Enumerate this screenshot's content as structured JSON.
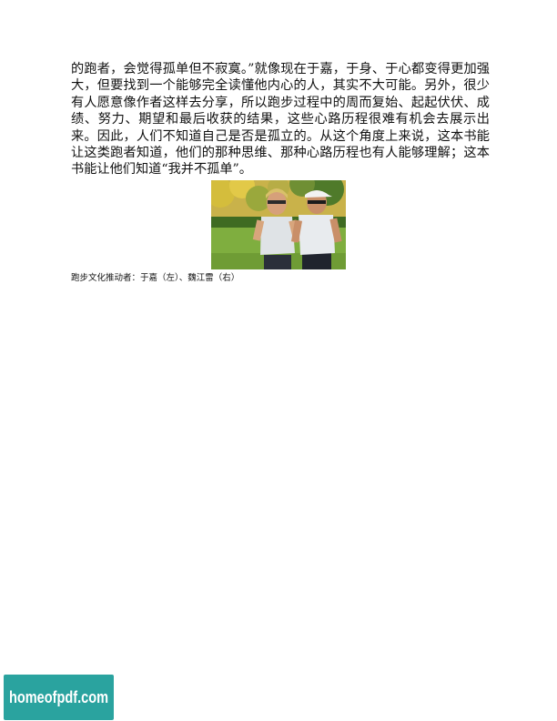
{
  "document": {
    "paragraph": "的跑者，会觉得孤单但不寂寞。”就像现在于嘉，于身、于心都变得更加强大，但要找到一个能够完全读懂他内心的人，其实不大可能。另外，很少有人愿意像作者这样去分享，所以跑步过程中的周而复始、起起伏伏、成绩、努力、期望和最后收获的结果，这些心路历程很难有机会去展示出来。因此，人们不知道自己是否是孤立的。从这个角度上来说，这本书能让这类跑者知道，他们的那种思维、那种心路历程也有人能够理解；这本书能让他们知道“我并不孤单”。",
    "photo_caption": "跑步文化推动者：于嘉（左）、魏江雷（右）"
  },
  "watermark": {
    "text": "homeofpdf.com",
    "background_color": "#2aa39f",
    "text_color": "#ffffff"
  }
}
